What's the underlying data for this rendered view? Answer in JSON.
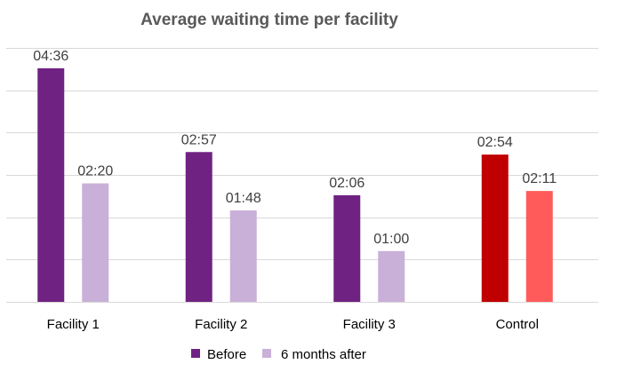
{
  "chart_data": {
    "type": "bar",
    "title": "Average waiting time per facility",
    "xlabel": "",
    "ylabel": "",
    "value_unit": "mm:ss",
    "ylim_seconds": [
      0,
      300
    ],
    "gridline_step_seconds": 50,
    "grid": true,
    "y_tick_labels_visible": false,
    "legend_position": "bottom",
    "categories": [
      "Facility 1",
      "Facility 2",
      "Facility 3",
      "Control"
    ],
    "series": [
      {
        "name": "Before",
        "values": [
          "04:36",
          "02:57",
          "02:06",
          "02:54"
        ],
        "values_seconds": [
          276,
          177,
          126,
          174
        ],
        "color": "#702283",
        "point_colors": [
          "#702283",
          "#702283",
          "#702283",
          "#C00000"
        ]
      },
      {
        "name": "6 months after",
        "values": [
          "02:20",
          "01:48",
          "01:00",
          "02:11"
        ],
        "values_seconds": [
          140,
          108,
          60,
          131
        ],
        "color": "#C9B0D8",
        "point_colors": [
          "#C9B0D8",
          "#C9B0D8",
          "#C9B0D8",
          "#FF5B5B"
        ]
      }
    ]
  },
  "colors": {
    "gridline": "#D9D9D9",
    "title": "#595959",
    "data_label": "#404040"
  }
}
